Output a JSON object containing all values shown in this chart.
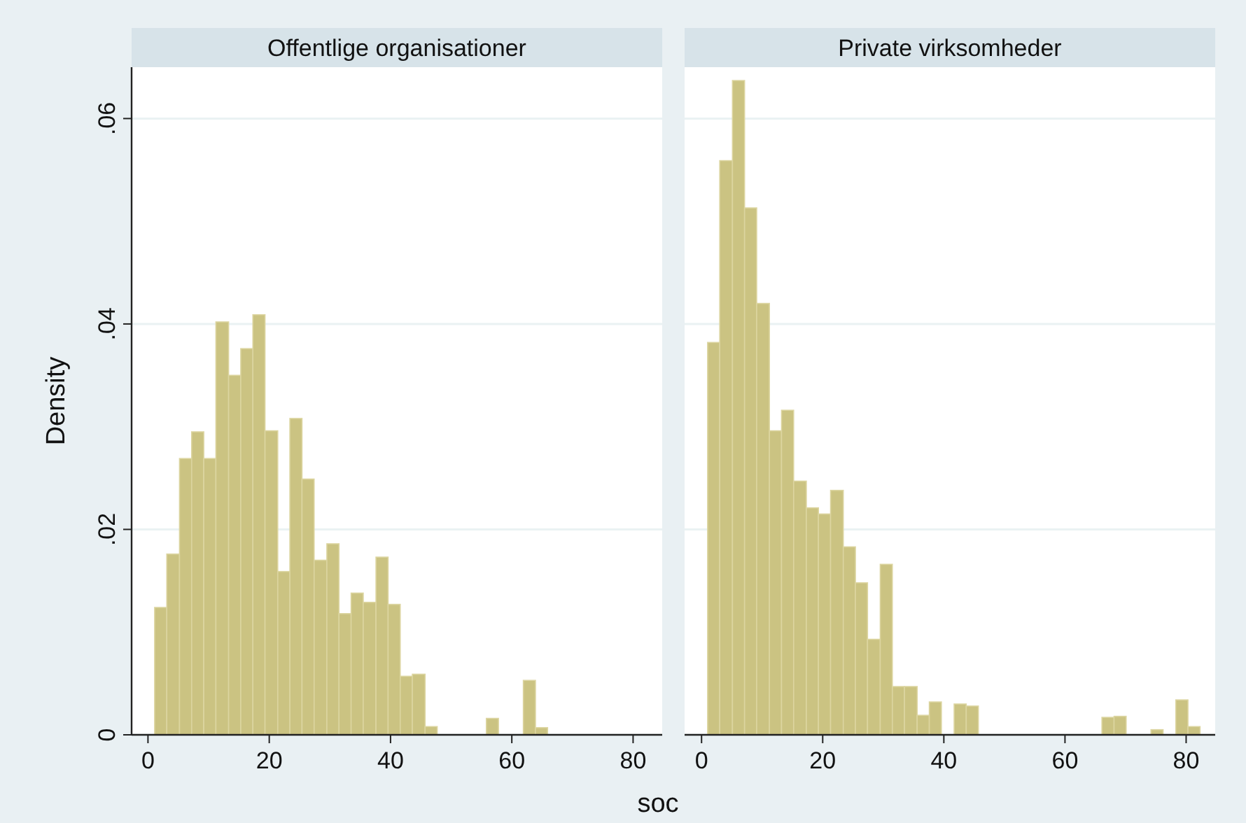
{
  "chart_data": [
    {
      "type": "histogram",
      "title": "Offentlige organisationer",
      "xlabel": "soc",
      "ylabel": "Density",
      "color": "#cbc382",
      "bins": [
        1.1,
        3.1,
        5.2,
        7.2,
        9.2,
        11.2,
        13.3,
        15.3,
        17.3,
        19.3,
        21.4,
        23.4,
        25.4,
        27.4,
        29.5,
        31.5,
        33.5,
        35.5,
        37.6,
        39.6,
        41.6,
        43.6,
        45.7,
        47.7,
        55.8,
        57.8,
        61.9,
        63.9,
        65.9
      ],
      "values": [
        0.0124,
        0.0176,
        0.0269,
        0.0295,
        0.0269,
        0.0402,
        0.035,
        0.0376,
        0.0409,
        0.0296,
        0.0159,
        0.0308,
        0.0249,
        0.017,
        0.0186,
        0.0118,
        0.0138,
        0.0129,
        0.0173,
        0.0127,
        0.0057,
        0.0059,
        0.0008,
        0,
        0.0016,
        0,
        0.0053,
        0.0007
      ],
      "xlim": [
        -2.7,
        84.8
      ],
      "ylim": [
        0,
        0.065
      ],
      "xticks": [
        0,
        20,
        40,
        60,
        80
      ],
      "yticks": [
        {
          "value": 0,
          "label": "0"
        },
        {
          "value": 0.02,
          "label": ".02"
        },
        {
          "value": 0.04,
          "label": ".04"
        },
        {
          "value": 0.06,
          "label": ".06"
        }
      ],
      "grid": "y"
    },
    {
      "type": "histogram",
      "title": "Private virksomheder",
      "color": "#cbc382",
      "bins": [
        1,
        3,
        5.1,
        7.1,
        9.1,
        11.2,
        13.2,
        15.2,
        17.3,
        19.3,
        21.3,
        23.4,
        25.4,
        27.4,
        29.5,
        31.5,
        33.5,
        35.6,
        37.6,
        39.6,
        41.7,
        43.7,
        45.7,
        66.1,
        68.1,
        70.1,
        74.2,
        76.2,
        78.3,
        80.3,
        82.3
      ],
      "values": [
        0.0382,
        0.0559,
        0.0637,
        0.0513,
        0.042,
        0.0296,
        0.0316,
        0.0247,
        0.0221,
        0.0215,
        0.0238,
        0.0183,
        0.0148,
        0.0093,
        0.0166,
        0.0047,
        0.0047,
        0.0019,
        0.0032,
        0,
        0.003,
        0.0028,
        0,
        0.0017,
        0.0018,
        0,
        0.0005,
        0,
        0.0034,
        0.0008
      ],
      "xlim": [
        -2.8,
        84.8
      ],
      "ylim": [
        0,
        0.065
      ],
      "xticks": [
        0,
        20,
        40,
        60,
        80
      ],
      "yticks": [
        {
          "value": 0,
          "label": null
        },
        {
          "value": 0.02,
          "label": null
        },
        {
          "value": 0.04,
          "label": null
        },
        {
          "value": 0.06,
          "label": null
        }
      ],
      "grid": "y",
      "tick_labels": "x"
    }
  ]
}
